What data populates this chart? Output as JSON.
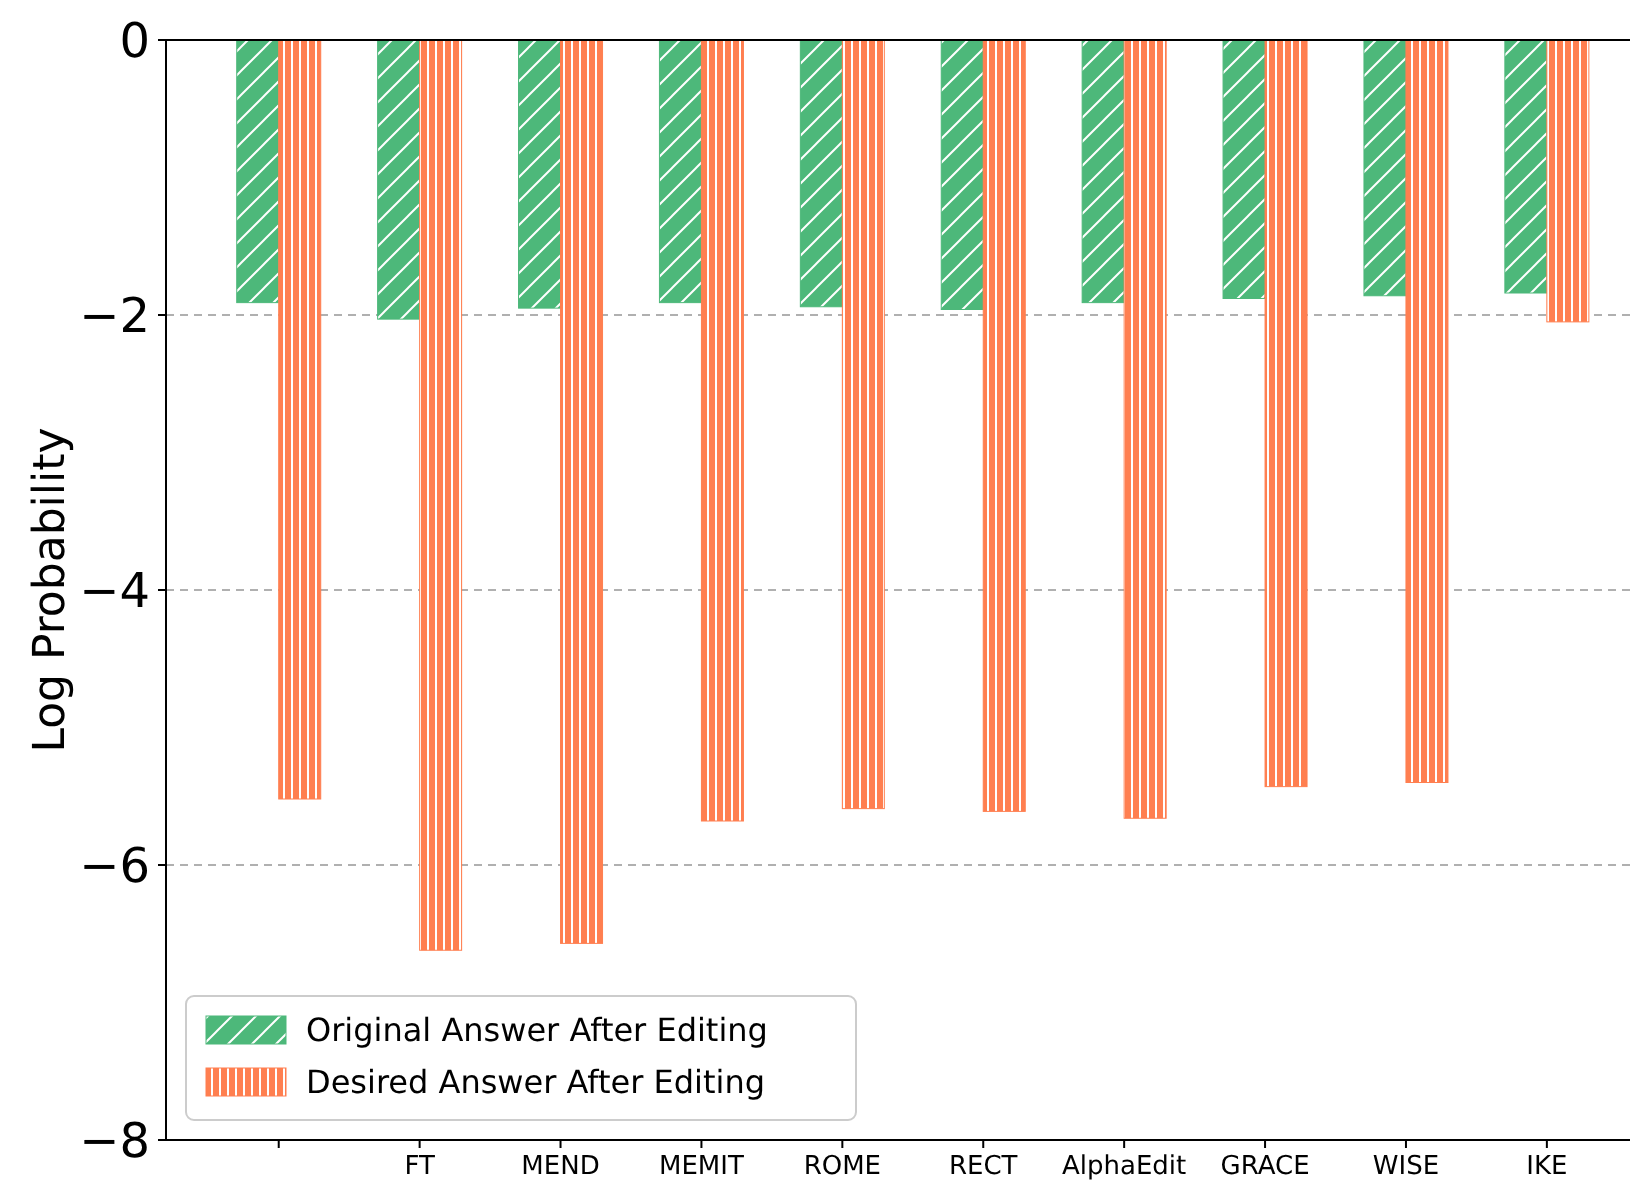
{
  "chart_data": {
    "type": "bar",
    "ylabel": "Log Probability",
    "categories": [
      null,
      "FT",
      "MEND",
      "MEMIT",
      "ROME",
      "RECT",
      "AlphaEdit",
      "GRACE",
      "WISE",
      "IKE"
    ],
    "series": [
      {
        "name": "Original Answer After Editing",
        "color": "#4db87a",
        "values": [
          -1.91,
          -2.03,
          -1.95,
          -1.91,
          -1.94,
          -1.96,
          -1.91,
          -1.88,
          -1.86,
          -1.84
        ]
      },
      {
        "name": "Desired Answer After Editing",
        "color": "#ff7f50",
        "values": [
          -5.52,
          -6.62,
          -6.57,
          -5.68,
          -5.59,
          -5.61,
          -5.66,
          -5.43,
          -5.4,
          -2.05
        ]
      }
    ],
    "ylim": [
      -8,
      0
    ],
    "yticks": [
      {
        "value": -8,
        "label": "−8"
      },
      {
        "value": -6,
        "label": "−6"
      },
      {
        "value": -4,
        "label": "−4"
      },
      {
        "value": -2,
        "label": "−2"
      },
      0
    ],
    "grid": "y",
    "legend": "bottom left"
  }
}
